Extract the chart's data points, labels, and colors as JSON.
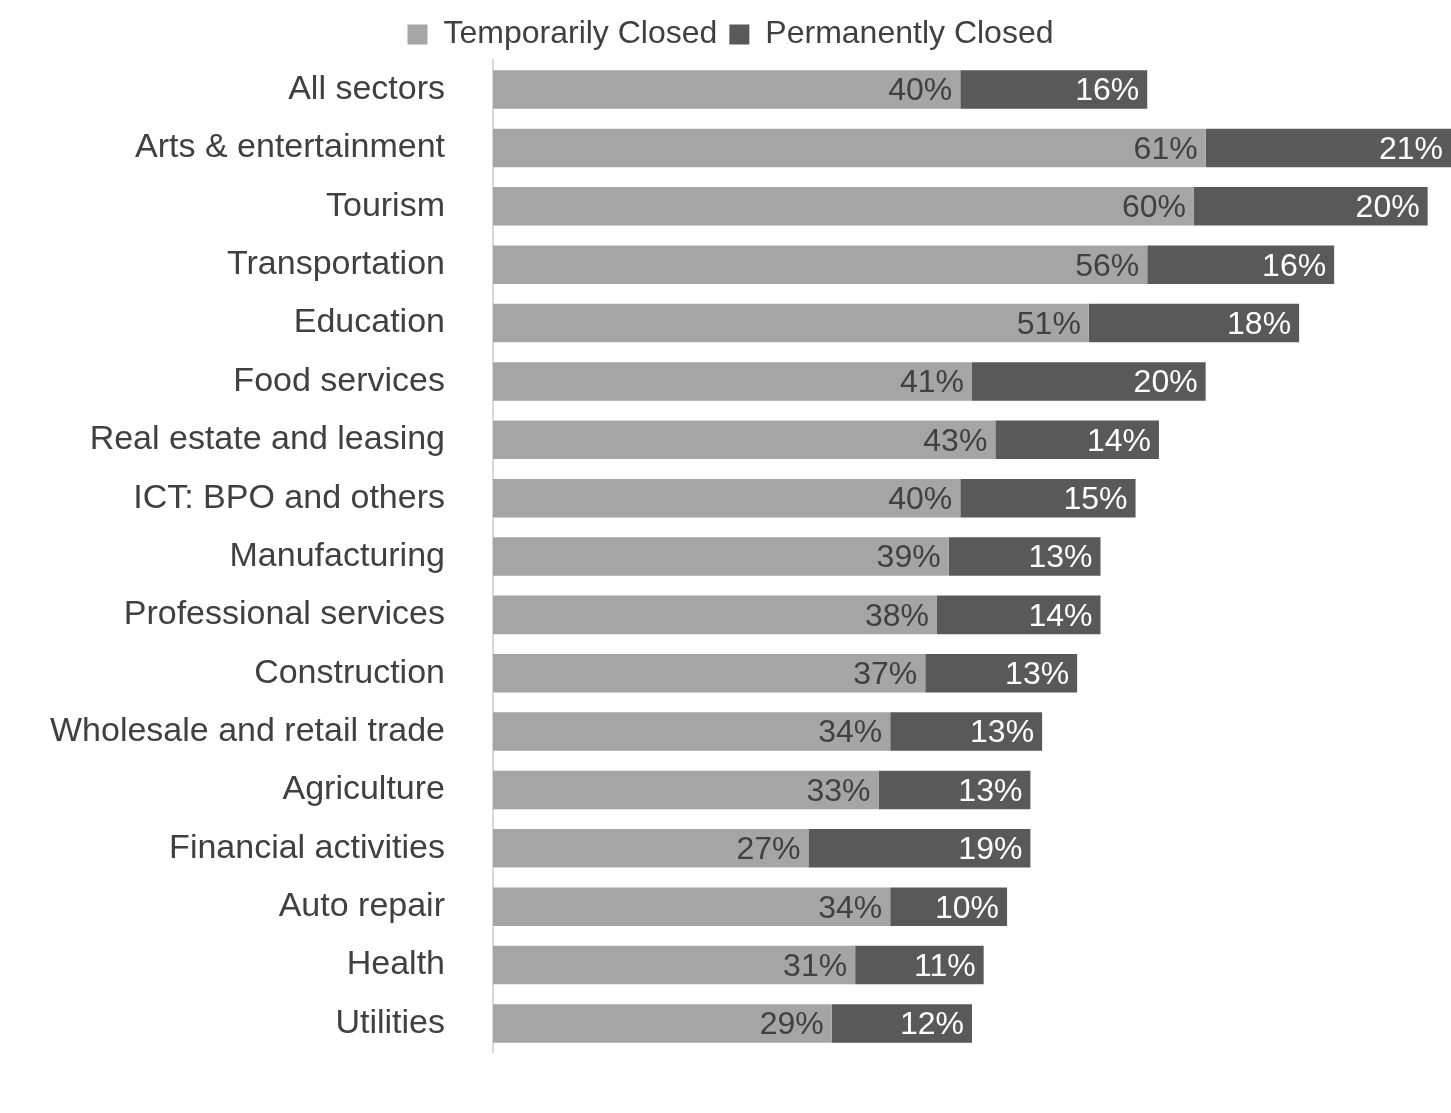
{
  "chart_data": {
    "type": "bar",
    "orientation": "horizontal",
    "stacked": true,
    "legend": "top",
    "categories": [
      "All sectors",
      "Arts & entertainment",
      "Tourism",
      "Transportation",
      "Education",
      "Food services",
      "Real estate and leasing",
      "ICT: BPO and others",
      "Manufacturing",
      "Professional services",
      "Construction",
      "Wholesale and retail trade",
      "Agriculture",
      "Financial activities",
      "Auto repair",
      "Health",
      "Utilities"
    ],
    "series": [
      {
        "name": "Temporarily Closed",
        "color": "#a5a5a5",
        "values": [
          40,
          61,
          60,
          56,
          51,
          41,
          43,
          40,
          39,
          38,
          37,
          34,
          33,
          27,
          34,
          31,
          29
        ],
        "value_labels": [
          "40%",
          "61%",
          "60%",
          "56%",
          "51%",
          "41%",
          "43%",
          "40%",
          "39%",
          "38%",
          "37%",
          "34%",
          "33%",
          "27%",
          "34%",
          "31%",
          "29%"
        ]
      },
      {
        "name": "Permanently Closed",
        "color": "#595959",
        "values": [
          16,
          21,
          20,
          16,
          18,
          20,
          14,
          15,
          13,
          14,
          13,
          13,
          13,
          19,
          10,
          11,
          12
        ],
        "value_labels": [
          "16%",
          "21%",
          "20%",
          "16%",
          "18%",
          "20%",
          "14%",
          "15%",
          "13%",
          "14%",
          "13%",
          "13%",
          "13%",
          "19%",
          "10%",
          "11%",
          "12%"
        ]
      }
    ]
  }
}
